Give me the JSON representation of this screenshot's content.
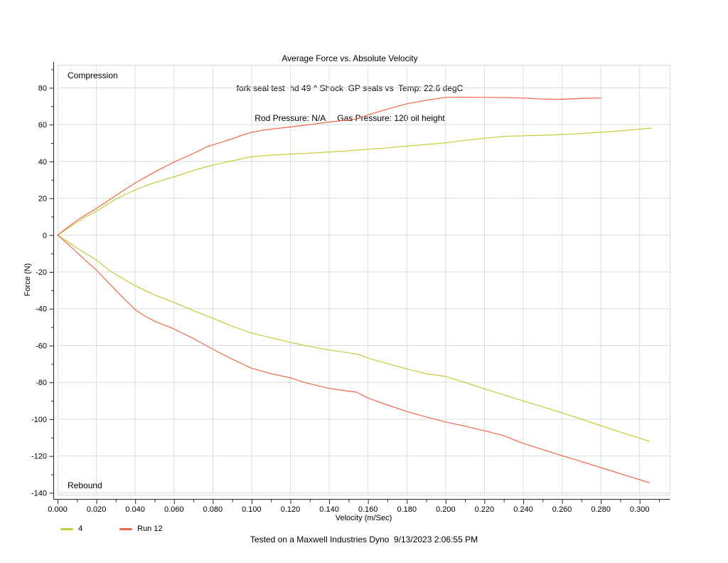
{
  "header": {
    "line1": "Average Force vs. Absolute Velocity",
    "line2": "fork seal test  hd 49 ^ Shock  GP seals vs  Temp: 22.6 degC",
    "line3": "Rod Pressure: N/A     Gas Pressure: 120 oil height"
  },
  "footer": {
    "text": "Tested on a Maxwell Industries Dyno  9/13/2023 2:06:55 PM"
  },
  "legend": {
    "items": [
      {
        "label": "4",
        "color": "#c5cb3a"
      },
      {
        "label": "Run 12",
        "color": "#f2684a"
      }
    ]
  },
  "chart_data": {
    "type": "line",
    "title": "Average Force vs. Absolute Velocity",
    "subtitle1": "fork seal test  hd 49 ^ Shock  GP seals vs  Temp: 22.6 degC",
    "subtitle2": "Rod Pressure: N/A     Gas Pressure: 120 oil height",
    "xlabel": "Velocity (m/Sec)",
    "ylabel": "Force (N)",
    "xlim": [
      0,
      0.3155
    ],
    "ylim": [
      -141,
      92.5
    ],
    "x_major_ticks": [
      0.0,
      0.02,
      0.04,
      0.06,
      0.08,
      0.1,
      0.12,
      0.14,
      0.16,
      0.18,
      0.2,
      0.22,
      0.24,
      0.26,
      0.28,
      0.3
    ],
    "x_minor_ticks": [
      0.01,
      0.03,
      0.05,
      0.07,
      0.09,
      0.11,
      0.13,
      0.15,
      0.17,
      0.19,
      0.21,
      0.23,
      0.25,
      0.27,
      0.29,
      0.31
    ],
    "x_tick_decimals": 3,
    "y_major_ticks": [
      80,
      60,
      40,
      20,
      0,
      -20,
      -40,
      -60,
      -80,
      -100,
      -120,
      -140
    ],
    "y_minor_ticks": [
      90,
      70,
      50,
      30,
      10,
      -10,
      -30,
      -50,
      -70,
      -90,
      -110,
      -130
    ],
    "grid_on": true,
    "grid_color": "#d2e1dc",
    "border_color": "#d9d9d9",
    "axis_color": "#222222",
    "legend_position": "bottom-left",
    "region_labels": [
      {
        "text": "Compression",
        "position": "top-left"
      },
      {
        "text": "Rebound",
        "position": "bottom-left"
      }
    ],
    "series": [
      {
        "name": "4",
        "color": "#c5cb3a",
        "branches": {
          "compression": [
            [
              0,
              0
            ],
            [
              0.005,
              3.5
            ],
            [
              0.01,
              7
            ],
            [
              0.015,
              10.2
            ],
            [
              0.02,
              13
            ],
            [
              0.025,
              16.3
            ],
            [
              0.03,
              19.5
            ],
            [
              0.035,
              22.1
            ],
            [
              0.04,
              24.5
            ],
            [
              0.045,
              26.6
            ],
            [
              0.05,
              28.5
            ],
            [
              0.055,
              30.1
            ],
            [
              0.06,
              31.6
            ],
            [
              0.065,
              33.3
            ],
            [
              0.07,
              35
            ],
            [
              0.077,
              37.2
            ],
            [
              0.085,
              39.2
            ],
            [
              0.09,
              40.3
            ],
            [
              0.095,
              41.5
            ],
            [
              0.1,
              42.5
            ],
            [
              0.11,
              43.4
            ],
            [
              0.12,
              44
            ],
            [
              0.13,
              44.5
            ],
            [
              0.14,
              45.1
            ],
            [
              0.15,
              45.8
            ],
            [
              0.16,
              46.6
            ],
            [
              0.17,
              47.4
            ],
            [
              0.18,
              48.3
            ],
            [
              0.19,
              49.2
            ],
            [
              0.2,
              50.1
            ],
            [
              0.21,
              51.4
            ],
            [
              0.22,
              52.6
            ],
            [
              0.23,
              53.6
            ],
            [
              0.24,
              53.9
            ],
            [
              0.25,
              54.2
            ],
            [
              0.26,
              54.6
            ],
            [
              0.27,
              55.1
            ],
            [
              0.28,
              55.8
            ],
            [
              0.29,
              56.6
            ],
            [
              0.3,
              57.5
            ],
            [
              0.306,
              58.1
            ]
          ],
          "rebound": [
            [
              0,
              0
            ],
            [
              0.005,
              -3.5
            ],
            [
              0.01,
              -7
            ],
            [
              0.015,
              -10.3
            ],
            [
              0.02,
              -13.5
            ],
            [
              0.027,
              -19.5
            ],
            [
              0.035,
              -24.5
            ],
            [
              0.04,
              -27.5
            ],
            [
              0.05,
              -32.5
            ],
            [
              0.06,
              -36.6
            ],
            [
              0.07,
              -41
            ],
            [
              0.08,
              -45.2
            ],
            [
              0.09,
              -49.5
            ],
            [
              0.1,
              -53.3
            ],
            [
              0.11,
              -55.8
            ],
            [
              0.12,
              -58.3
            ],
            [
              0.13,
              -60.5
            ],
            [
              0.14,
              -62.4
            ],
            [
              0.15,
              -64
            ],
            [
              0.155,
              -64.8
            ],
            [
              0.16,
              -66.8
            ],
            [
              0.17,
              -69.8
            ],
            [
              0.18,
              -72.7
            ],
            [
              0.19,
              -75.3
            ],
            [
              0.2,
              -76.8
            ],
            [
              0.21,
              -80.1
            ],
            [
              0.22,
              -83.5
            ],
            [
              0.23,
              -86.8
            ],
            [
              0.24,
              -90.1
            ],
            [
              0.25,
              -93.3
            ],
            [
              0.26,
              -96.6
            ],
            [
              0.27,
              -100
            ],
            [
              0.28,
              -103.5
            ],
            [
              0.29,
              -107
            ],
            [
              0.3,
              -110.3
            ],
            [
              0.305,
              -112
            ]
          ]
        }
      },
      {
        "name": "Run 12",
        "color": "#f2684a",
        "branches": {
          "compression": [
            [
              0,
              0
            ],
            [
              0.005,
              4
            ],
            [
              0.01,
              8
            ],
            [
              0.015,
              11.3
            ],
            [
              0.02,
              14.5
            ],
            [
              0.025,
              18
            ],
            [
              0.03,
              21.5
            ],
            [
              0.035,
              25
            ],
            [
              0.04,
              28.3
            ],
            [
              0.045,
              31.3
            ],
            [
              0.05,
              34.2
            ],
            [
              0.055,
              37
            ],
            [
              0.06,
              39.6
            ],
            [
              0.065,
              42
            ],
            [
              0.07,
              44.3
            ],
            [
              0.077,
              48
            ],
            [
              0.085,
              50.6
            ],
            [
              0.09,
              52.3
            ],
            [
              0.095,
              54.2
            ],
            [
              0.1,
              55.8
            ],
            [
              0.105,
              56.8
            ],
            [
              0.11,
              57.5
            ],
            [
              0.12,
              58.7
            ],
            [
              0.13,
              60
            ],
            [
              0.14,
              61.4
            ],
            [
              0.148,
              62.3
            ],
            [
              0.154,
              63
            ],
            [
              0.16,
              65.3
            ],
            [
              0.17,
              68.4
            ],
            [
              0.18,
              71.3
            ],
            [
              0.19,
              73.2
            ],
            [
              0.2,
              74.8
            ],
            [
              0.21,
              74.9
            ],
            [
              0.22,
              74.8
            ],
            [
              0.23,
              74.7
            ],
            [
              0.24,
              74.4
            ],
            [
              0.25,
              73.9
            ],
            [
              0.257,
              73.7
            ],
            [
              0.265,
              74
            ],
            [
              0.272,
              74.3
            ],
            [
              0.28,
              74.5
            ]
          ],
          "rebound": [
            [
              0,
              0
            ],
            [
              0.005,
              -4.5
            ],
            [
              0.01,
              -9.5
            ],
            [
              0.015,
              -14.3
            ],
            [
              0.02,
              -19
            ],
            [
              0.025,
              -24.5
            ],
            [
              0.03,
              -30
            ],
            [
              0.035,
              -35.3
            ],
            [
              0.04,
              -40.5
            ],
            [
              0.045,
              -44
            ],
            [
              0.05,
              -46.8
            ],
            [
              0.06,
              -51
            ],
            [
              0.07,
              -56.2
            ],
            [
              0.08,
              -62
            ],
            [
              0.09,
              -67.4
            ],
            [
              0.1,
              -72.3
            ],
            [
              0.11,
              -75.3
            ],
            [
              0.12,
              -77.5
            ],
            [
              0.127,
              -80
            ],
            [
              0.135,
              -82
            ],
            [
              0.14,
              -83.3
            ],
            [
              0.148,
              -84.5
            ],
            [
              0.154,
              -85.3
            ],
            [
              0.16,
              -88.5
            ],
            [
              0.17,
              -92.3
            ],
            [
              0.18,
              -95.8
            ],
            [
              0.19,
              -98.8
            ],
            [
              0.2,
              -101.5
            ],
            [
              0.21,
              -103.8
            ],
            [
              0.22,
              -106.3
            ],
            [
              0.23,
              -109
            ],
            [
              0.24,
              -113.2
            ],
            [
              0.25,
              -116.5
            ],
            [
              0.26,
              -119.8
            ],
            [
              0.27,
              -123
            ],
            [
              0.28,
              -126.3
            ],
            [
              0.29,
              -129.6
            ],
            [
              0.3,
              -132.9
            ],
            [
              0.305,
              -134.5
            ]
          ]
        }
      }
    ]
  }
}
